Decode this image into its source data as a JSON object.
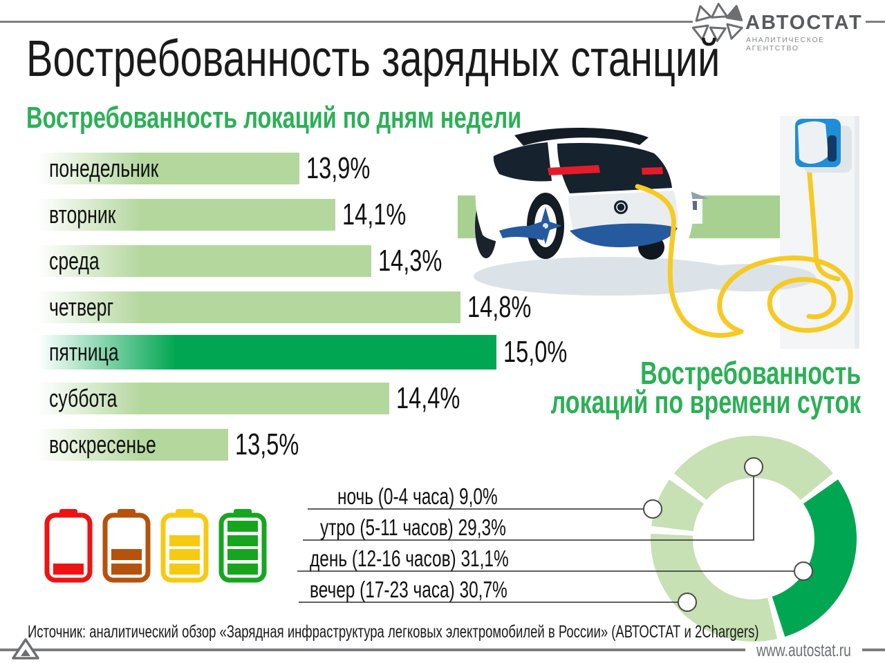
{
  "logo": {
    "brand": "АВТОСТАТ",
    "tagline": "АНАЛИТИЧЕСКОЕ АГЕНТСТВО"
  },
  "header": {
    "title": "Востребованность зарядных станций"
  },
  "footer": {
    "source": "Источник: аналитический обзор «Зарядная инфраструктура легковых электромобилей в России» (АВТОСТАТ и 2Chargers)",
    "website": "www.autostat.ru"
  },
  "colors": {
    "heading_green": "#2bb056",
    "accent_green": "#00a651",
    "bar_light_green": "#b4d79e",
    "donut_light_green": "#c7e0b4",
    "band_green": "#a8d191",
    "gray_line": "#7c7d7f",
    "logo_gray": "#6d6e70",
    "cable_yellow": "#f6ca24"
  },
  "chart_data": [
    {
      "type": "bar",
      "orientation": "horizontal",
      "title": "Востребованность локаций по дням недели",
      "categories": [
        "понедельник",
        "вторник",
        "среда",
        "четверг",
        "пятница",
        "суббота",
        "воскресенье"
      ],
      "values": [
        13.9,
        14.1,
        14.3,
        14.8,
        15.0,
        14.4,
        13.5
      ],
      "value_labels": [
        "13,9%",
        "14,1%",
        "14,3%",
        "14,8%",
        "15,0%",
        "14,4%",
        "13,5%"
      ],
      "highlight_index": 4,
      "highlight_category": "пятница",
      "bar_color": "#b4d79e",
      "highlight_color": "#00a651",
      "xlim": [
        12.4,
        15.0
      ],
      "grid": false
    },
    {
      "type": "donut",
      "title_lines": [
        "Востребованность",
        "локаций по времени суток"
      ],
      "labels": [
        "ночь (0-4 часа)",
        "утро (5-11 часов)",
        "день (12-16 часов)",
        "вечер (17-23 часа)"
      ],
      "values": [
        9.0,
        29.3,
        31.1,
        30.7
      ],
      "value_labels": [
        "9,0%",
        "29,3%",
        "31,1%",
        "30,7%"
      ],
      "segment_colors": [
        "#c7e0b4",
        "#c7e0b4",
        "#00a651",
        "#c7e0b4"
      ],
      "highlight_label": "день (12-16 часов)",
      "legend_position": "left"
    }
  ],
  "battery_icons": [
    {
      "name": "battery-level-1-icon",
      "color": "#ee1212",
      "bars": 1
    },
    {
      "name": "battery-level-2-icon",
      "color": "#b5520e",
      "bars": 2
    },
    {
      "name": "battery-level-3-icon",
      "color": "#f7ca12",
      "bars": 3
    },
    {
      "name": "battery-level-4-icon",
      "color": "#17a51f",
      "bars": 4
    }
  ]
}
